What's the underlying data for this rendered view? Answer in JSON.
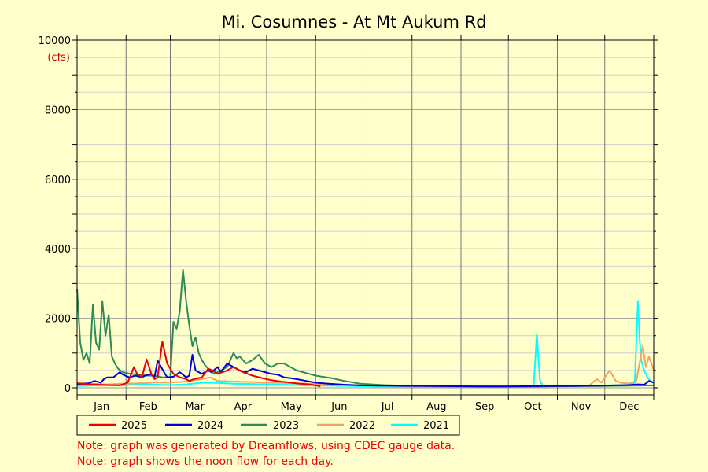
{
  "chart_data": {
    "type": "line",
    "title": "Mi. Cosumnes - At Mt Aukum Rd",
    "ylabel": "(cfs)",
    "xlabel": "",
    "ylim": [
      0,
      10000
    ],
    "yticks": [
      0,
      2000,
      4000,
      6000,
      8000,
      10000
    ],
    "xlim": [
      1,
      366
    ],
    "months": [
      "Jan",
      "Feb",
      "Mar",
      "Apr",
      "May",
      "Jun",
      "Jul",
      "Aug",
      "Sep",
      "Oct",
      "Nov",
      "Dec"
    ],
    "grid": true,
    "legend_position": "bottom",
    "series": [
      {
        "name": "2025",
        "color": "#ee0000",
        "x": [
          1,
          10,
          20,
          28,
          33,
          37,
          39,
          42,
          45,
          48,
          50,
          52,
          55,
          58,
          62,
          66,
          70,
          72,
          75,
          80,
          84,
          87,
          90,
          96,
          100,
          106,
          112,
          118,
          124,
          130,
          136,
          142,
          148,
          152,
          155
        ],
        "y": [
          130,
          100,
          80,
          70,
          150,
          600,
          400,
          300,
          820,
          400,
          250,
          300,
          1330,
          700,
          400,
          300,
          250,
          200,
          250,
          300,
          550,
          500,
          400,
          500,
          600,
          450,
          350,
          280,
          220,
          180,
          150,
          120,
          100,
          70,
          40
        ]
      },
      {
        "name": "2024",
        "color": "#0000dd",
        "x": [
          1,
          8,
          12,
          16,
          18,
          20,
          24,
          28,
          30,
          34,
          38,
          42,
          44,
          48,
          50,
          52,
          56,
          58,
          62,
          66,
          70,
          72,
          74,
          76,
          80,
          84,
          86,
          90,
          92,
          96,
          100,
          104,
          108,
          112,
          116,
          120,
          124,
          128,
          132,
          136,
          140,
          146,
          152,
          160,
          170,
          180,
          195,
          210,
          225,
          240,
          255,
          270,
          285,
          300,
          315,
          330,
          340,
          350,
          356,
          360,
          363,
          366
        ],
        "y": [
          100,
          130,
          200,
          150,
          250,
          300,
          300,
          450,
          380,
          300,
          350,
          300,
          350,
          400,
          300,
          780,
          450,
          300,
          320,
          450,
          300,
          350,
          950,
          500,
          400,
          500,
          450,
          600,
          450,
          700,
          600,
          500,
          450,
          550,
          500,
          450,
          400,
          380,
          300,
          280,
          250,
          200,
          150,
          120,
          90,
          70,
          60,
          55,
          50,
          45,
          40,
          40,
          45,
          50,
          55,
          60,
          70,
          80,
          100,
          90,
          200,
          150
        ]
      },
      {
        "name": "2023",
        "color": "#2e8b57",
        "x": [
          1,
          3,
          5,
          7,
          9,
          11,
          13,
          15,
          17,
          19,
          21,
          23,
          25,
          27,
          30,
          35,
          40,
          45,
          50,
          55,
          60,
          62,
          64,
          66,
          68,
          70,
          72,
          74,
          76,
          78,
          80,
          82,
          84,
          88,
          92,
          96,
          100,
          102,
          104,
          108,
          112,
          116,
          120,
          124,
          128,
          132,
          136,
          140,
          144,
          148,
          152,
          156,
          162,
          170,
          180,
          195,
          210,
          230,
          250,
          270,
          290,
          310,
          330,
          350,
          366
        ],
        "y": [
          2850,
          1300,
          800,
          1000,
          700,
          2400,
          1300,
          1100,
          2500,
          1500,
          2100,
          900,
          700,
          550,
          450,
          400,
          380,
          350,
          350,
          300,
          300,
          1900,
          1700,
          2200,
          3400,
          2500,
          1800,
          1200,
          1450,
          1000,
          800,
          650,
          550,
          400,
          500,
          600,
          1000,
          850,
          900,
          700,
          800,
          950,
          700,
          600,
          700,
          700,
          600,
          500,
          450,
          400,
          350,
          320,
          280,
          200,
          120,
          80,
          60,
          50,
          45,
          40,
          40,
          45,
          50,
          60,
          70
        ]
      },
      {
        "name": "2022",
        "color": "#f4a460",
        "x": [
          1,
          10,
          20,
          30,
          40,
          50,
          60,
          70,
          80,
          85,
          90,
          100,
          110,
          120,
          130,
          140,
          150,
          160,
          175,
          190,
          210,
          230,
          250,
          270,
          290,
          310,
          325,
          330,
          333,
          338,
          342,
          345,
          350,
          355,
          359,
          361,
          363,
          366
        ],
        "y": [
          150,
          120,
          100,
          120,
          130,
          150,
          150,
          180,
          250,
          300,
          200,
          180,
          170,
          150,
          140,
          130,
          120,
          100,
          80,
          60,
          50,
          45,
          40,
          40,
          40,
          50,
          60,
          250,
          150,
          500,
          200,
          150,
          120,
          200,
          1200,
          600,
          900,
          500
        ]
      },
      {
        "name": "2021",
        "color": "#00ffff",
        "x": [
          1,
          10,
          20,
          30,
          40,
          50,
          60,
          70,
          80,
          90,
          100,
          110,
          120,
          130,
          140,
          150,
          160,
          175,
          190,
          210,
          230,
          250,
          270,
          288,
          290,
          292,
          294,
          296,
          300,
          320,
          340,
          350,
          354,
          356,
          357,
          358,
          360,
          362,
          364,
          366
        ],
        "y": [
          50,
          60,
          80,
          70,
          100,
          90,
          80,
          100,
          150,
          140,
          120,
          110,
          100,
          90,
          80,
          70,
          60,
          50,
          40,
          40,
          35,
          35,
          40,
          40,
          60,
          1550,
          200,
          60,
          50,
          60,
          70,
          80,
          150,
          2500,
          1500,
          800,
          500,
          300,
          200,
          150
        ]
      }
    ],
    "notes": [
      "Note: graph was generated by Dreamflows, using CDEC gauge data.",
      "Note: graph shows the noon flow for each day."
    ]
  }
}
